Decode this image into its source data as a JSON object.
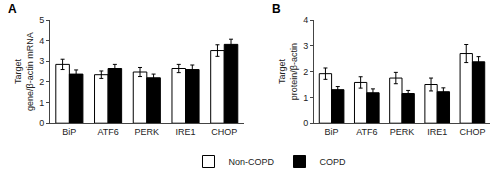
{
  "chart_data": [
    {
      "type": "bar",
      "title": "A",
      "categories": [
        "BiP",
        "ATF6",
        "PERK",
        "IRE1",
        "CHOP"
      ],
      "series": [
        {
          "name": "Non-COPD",
          "color": "white",
          "values": [
            2.85,
            2.35,
            2.48,
            2.65,
            3.52
          ],
          "errors": [
            0.25,
            0.18,
            0.22,
            0.2,
            0.28
          ]
        },
        {
          "name": "COPD",
          "color": "black",
          "values": [
            2.38,
            2.65,
            2.2,
            2.6,
            3.82
          ],
          "errors": [
            0.2,
            0.2,
            0.18,
            0.22,
            0.25
          ]
        }
      ],
      "ylabel": "Target\ngene/β-actin mRNA",
      "ylim": [
        0,
        5
      ],
      "yticks": [
        0,
        1,
        2,
        3,
        4,
        5
      ],
      "grid": false,
      "legend": "bottom"
    },
    {
      "type": "bar",
      "title": "B",
      "categories": [
        "BiP",
        "ATF6",
        "PERK",
        "IRE1",
        "CHOP"
      ],
      "series": [
        {
          "name": "Non-COPD",
          "color": "white",
          "values": [
            1.92,
            1.58,
            1.75,
            1.5,
            2.7
          ],
          "errors": [
            0.22,
            0.22,
            0.22,
            0.25,
            0.35
          ]
        },
        {
          "name": "COPD",
          "color": "black",
          "values": [
            1.3,
            1.18,
            1.15,
            1.22,
            2.38
          ],
          "errors": [
            0.12,
            0.15,
            0.12,
            0.15,
            0.2
          ]
        }
      ],
      "ylabel": "Target\nprotein/β-actin",
      "ylim": [
        0,
        4
      ],
      "yticks": [
        0,
        1,
        2,
        3,
        4
      ],
      "grid": false,
      "legend": "bottom"
    }
  ]
}
